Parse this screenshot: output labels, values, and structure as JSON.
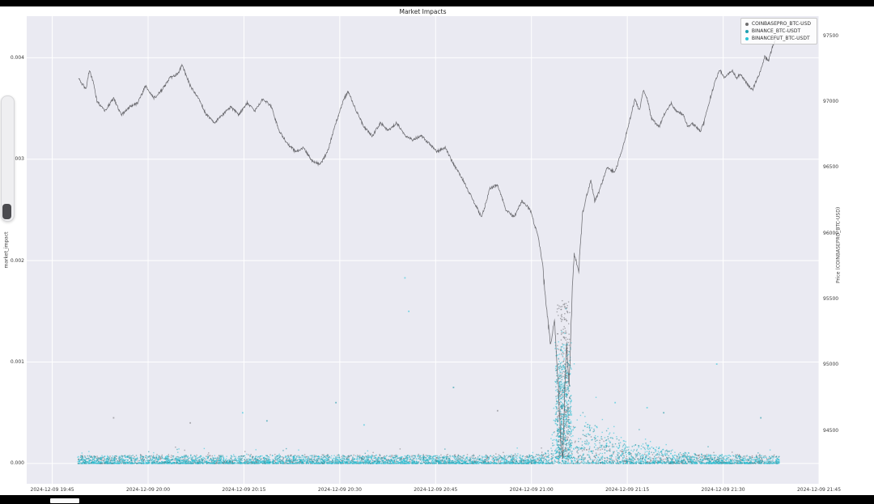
{
  "screen": {
    "bezel_color": "#000000",
    "figure_bg": "#ffffff"
  },
  "slider": {
    "track_color": "#efeff1",
    "handle_color": "#4b4b4f"
  },
  "chart_data": {
    "type": "scatter",
    "title": "Market Impacts",
    "ylabel_left": "market_impact",
    "ylabel_right": "Price (COINBASEPRO_BTC-USD)",
    "plot_bg": "#eaeaf2",
    "grid_color": "#ffffff",
    "grid": true,
    "legend_position": "upper right",
    "x_tick_labels": [
      "2024-12-09 19:45",
      "2024-12-09 20:00",
      "2024-12-09 20:15",
      "2024-12-09 20:30",
      "2024-12-09 20:45",
      "2024-12-09 21:00",
      "2024-12-09 21:15",
      "2024-12-09 21:30",
      "2024-12-09 21:45"
    ],
    "x_tick_interval_minutes": 15,
    "x_range_minutes": [
      -4,
      120
    ],
    "y_left_ticks": [
      "0.000",
      "0.001",
      "0.002",
      "0.003",
      "0.004"
    ],
    "y_left_values": [
      0,
      0.001,
      0.002,
      0.003,
      0.004
    ],
    "y_left_range": [
      -0.0002,
      0.00441
    ],
    "y_right_ticks": [
      94500,
      95000,
      95500,
      96000,
      96500,
      97000,
      97500
    ],
    "y_right_range": [
      94094,
      97650
    ],
    "legend": [
      {
        "label": "COINBASEPRO_BTC-USD",
        "color": "#6e6e6e"
      },
      {
        "label": "BINANCE_BTC-USDT",
        "color": "#1f9fb0"
      },
      {
        "label": "BINANCEFUT_BTC-USDT",
        "color": "#2cc3d5"
      }
    ],
    "price_series": {
      "name": "COINBASEPRO_BTC-USD",
      "color": "#55555a",
      "points": [
        [
          4.1,
          97180
        ],
        [
          4.7,
          97130
        ],
        [
          5.3,
          97100
        ],
        [
          5.8,
          97240
        ],
        [
          6.4,
          97150
        ],
        [
          7.0,
          97000
        ],
        [
          8.3,
          96930
        ],
        [
          9.6,
          97025
        ],
        [
          10.8,
          96900
        ],
        [
          12.1,
          96960
        ],
        [
          13.4,
          96990
        ],
        [
          14.6,
          97120
        ],
        [
          15.9,
          97025
        ],
        [
          17.2,
          97090
        ],
        [
          18.4,
          97180
        ],
        [
          19.7,
          97210
        ],
        [
          20.3,
          97280
        ],
        [
          21.6,
          97120
        ],
        [
          22.9,
          97025
        ],
        [
          24.1,
          96900
        ],
        [
          25.4,
          96840
        ],
        [
          26.7,
          96900
        ],
        [
          27.9,
          96960
        ],
        [
          29.2,
          96900
        ],
        [
          30.5,
          96990
        ],
        [
          31.7,
          96930
        ],
        [
          33.0,
          97025
        ],
        [
          34.3,
          96960
        ],
        [
          35.5,
          96775
        ],
        [
          36.8,
          96680
        ],
        [
          38.1,
          96620
        ],
        [
          39.3,
          96650
        ],
        [
          40.6,
          96555
        ],
        [
          41.9,
          96520
        ],
        [
          43.1,
          96620
        ],
        [
          44.4,
          96840
        ],
        [
          45.7,
          97025
        ],
        [
          46.3,
          97075
        ],
        [
          47.6,
          96930
        ],
        [
          48.8,
          96805
        ],
        [
          50.1,
          96740
        ],
        [
          51.4,
          96840
        ],
        [
          52.6,
          96775
        ],
        [
          53.9,
          96840
        ],
        [
          55.2,
          96740
        ],
        [
          56.4,
          96710
        ],
        [
          57.7,
          96740
        ],
        [
          59.0,
          96680
        ],
        [
          60.2,
          96620
        ],
        [
          61.5,
          96650
        ],
        [
          62.8,
          96525
        ],
        [
          64.0,
          96430
        ],
        [
          65.3,
          96305
        ],
        [
          66.6,
          96180
        ],
        [
          67.2,
          96120
        ],
        [
          68.5,
          96340
        ],
        [
          69.7,
          96370
        ],
        [
          71.0,
          96180
        ],
        [
          72.3,
          96120
        ],
        [
          73.5,
          96245
        ],
        [
          74.8,
          96180
        ],
        [
          76.1,
          95960
        ],
        [
          76.7,
          95775
        ],
        [
          77.3,
          95460
        ],
        [
          78.0,
          95150
        ],
        [
          78.6,
          95340
        ],
        [
          79.2,
          94840
        ],
        [
          79.6,
          94400
        ],
        [
          79.9,
          94280
        ],
        [
          80.2,
          94780
        ],
        [
          80.5,
          95150
        ],
        [
          80.9,
          94840
        ],
        [
          81.4,
          95590
        ],
        [
          81.7,
          95840
        ],
        [
          82.4,
          95715
        ],
        [
          83.0,
          96150
        ],
        [
          83.6,
          96275
        ],
        [
          84.3,
          96400
        ],
        [
          84.9,
          96245
        ],
        [
          85.5,
          96305
        ],
        [
          86.8,
          96495
        ],
        [
          88.1,
          96465
        ],
        [
          89.3,
          96650
        ],
        [
          90.6,
          96900
        ],
        [
          91.2,
          97025
        ],
        [
          91.9,
          96930
        ],
        [
          92.5,
          97090
        ],
        [
          93.1,
          97025
        ],
        [
          93.8,
          96870
        ],
        [
          95.0,
          96805
        ],
        [
          95.7,
          96900
        ],
        [
          96.9,
          96990
        ],
        [
          97.6,
          96930
        ],
        [
          98.8,
          96900
        ],
        [
          99.5,
          96805
        ],
        [
          100.1,
          96840
        ],
        [
          101.4,
          96775
        ],
        [
          102.0,
          96840
        ],
        [
          102.6,
          96960
        ],
        [
          103.9,
          97180
        ],
        [
          104.5,
          97240
        ],
        [
          105.2,
          97180
        ],
        [
          106.4,
          97240
        ],
        [
          107.1,
          97180
        ],
        [
          107.7,
          97210
        ],
        [
          109.0,
          97120
        ],
        [
          109.6,
          97090
        ],
        [
          110.9,
          97240
        ],
        [
          111.5,
          97340
        ],
        [
          112.1,
          97310
        ],
        [
          112.8,
          97430
        ],
        [
          113.4,
          97490
        ],
        [
          113.7,
          97460
        ]
      ]
    },
    "impact_series": [
      {
        "name": "COINBASEPRO_BTC-USD",
        "color": "rgba(100,100,103,0.5)",
        "n": 1400,
        "base": 9e-05,
        "bumps": [
          {
            "t": 80,
            "w": 1.0,
            "a": 0.0016
          },
          {
            "t": 84,
            "w": 4,
            "a": 0.0002
          }
        ]
      },
      {
        "name": "BINANCE_BTC-USDT",
        "color": "rgba(24,148,163,0.6)",
        "n": 2200,
        "base": 8e-05,
        "bumps": [
          {
            "t": 80,
            "w": 1.2,
            "a": 0.001
          },
          {
            "t": 84,
            "w": 4,
            "a": 0.00026
          },
          {
            "t": 90,
            "w": 8,
            "a": 0.0001
          }
        ]
      },
      {
        "name": "BINANCEFUT_BTC-USDT",
        "color": "rgba(46,196,216,0.6)",
        "n": 2600,
        "base": 8e-05,
        "bumps": [
          {
            "t": 80,
            "w": 1.3,
            "a": 0.0012
          },
          {
            "t": 84,
            "w": 4,
            "a": 0.0003
          },
          {
            "t": 90,
            "w": 8,
            "a": 0.00012
          }
        ]
      }
    ],
    "impact_outliers": [
      [
        0,
        9.6,
        0.00045
      ],
      [
        0,
        21.6,
        0.0004
      ],
      [
        0,
        69.7,
        0.00052
      ],
      [
        1,
        44.4,
        0.0006
      ],
      [
        1,
        62.8,
        0.00075
      ],
      [
        1,
        33.6,
        0.00042
      ],
      [
        1,
        95.7,
        0.0005
      ],
      [
        1,
        110.9,
        0.00045
      ],
      [
        2,
        55.2,
        0.00183
      ],
      [
        2,
        55.8,
        0.0015
      ],
      [
        2,
        29.8,
        0.0005
      ],
      [
        2,
        48.8,
        0.00038
      ],
      [
        2,
        88.1,
        0.0006
      ],
      [
        2,
        93.1,
        0.00055
      ],
      [
        2,
        104.0,
        0.00098
      ]
    ]
  }
}
